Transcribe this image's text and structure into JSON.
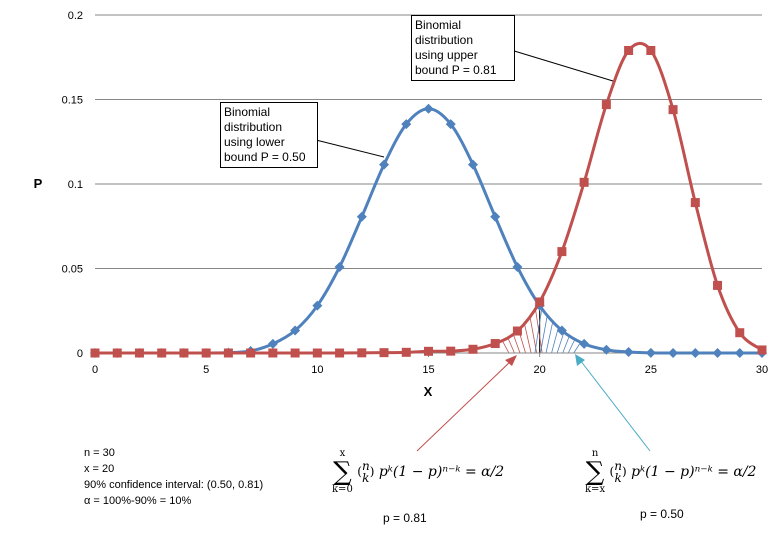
{
  "chart_data": {
    "type": "line",
    "xlabel": "X",
    "ylabel": "P",
    "xlim": [
      0,
      30
    ],
    "ylim": [
      0,
      0.2
    ],
    "xticks": [
      "0",
      "5",
      "10",
      "15",
      "20",
      "25",
      "30"
    ],
    "yticks": [
      "0",
      "0.05",
      "0.1",
      "0.15",
      "0.2"
    ],
    "grid": "horizontal",
    "x": [
      0,
      1,
      2,
      3,
      4,
      5,
      6,
      7,
      8,
      9,
      10,
      11,
      12,
      13,
      14,
      15,
      16,
      17,
      18,
      19,
      20,
      21,
      22,
      23,
      24,
      25,
      26,
      27,
      28,
      29,
      30
    ],
    "series": [
      {
        "color": "#4f81bd",
        "marker": "diamond",
        "values": [
          0,
          0,
          0,
          0,
          0,
          0,
          0.0002,
          0.0012,
          0.0054,
          0.0133,
          0.028,
          0.0509,
          0.0806,
          0.1115,
          0.1354,
          0.1445,
          0.1354,
          0.1115,
          0.0806,
          0.0509,
          0.028,
          0.0133,
          0.0054,
          0.0019,
          0.0006,
          0.0001,
          0,
          0,
          0,
          0,
          0
        ]
      },
      {
        "color": "#c0504d",
        "marker": "square",
        "values": [
          0,
          0,
          0,
          0,
          0,
          0,
          0,
          0,
          0,
          0,
          0,
          0,
          0.0001,
          0.0002,
          0.0004,
          0.001,
          0.0011,
          0.0022,
          0.0056,
          0.013,
          0.0302,
          0.06,
          0.101,
          0.147,
          0.179,
          0.179,
          0.144,
          0.089,
          0.04,
          0.012,
          0.0018
        ]
      }
    ],
    "annotations": {
      "lower": "Binomial\ndistribution\nusing lower\nbound P = 0.50",
      "upper": "Binomial\ndistribution\nusing upper\nbound P = 0.81"
    }
  },
  "notes": [
    "n = 30",
    "x = 20",
    "90% confidence interval: (0.50, 0.81)",
    "α = 100%-90% = 10%"
  ],
  "formulas": {
    "left": {
      "sum_top": "x",
      "sum_bottom": "k=0",
      "body": "pᵏ(1 − p)ⁿ⁻ᵏ = α/2",
      "p_label": "p = 0.81"
    },
    "right": {
      "sum_top": "n",
      "sum_bottom": "k=x",
      "body": "pᵏ(1 − p)ⁿ⁻ᵏ = α/2",
      "p_label": "p = 0.50"
    }
  }
}
